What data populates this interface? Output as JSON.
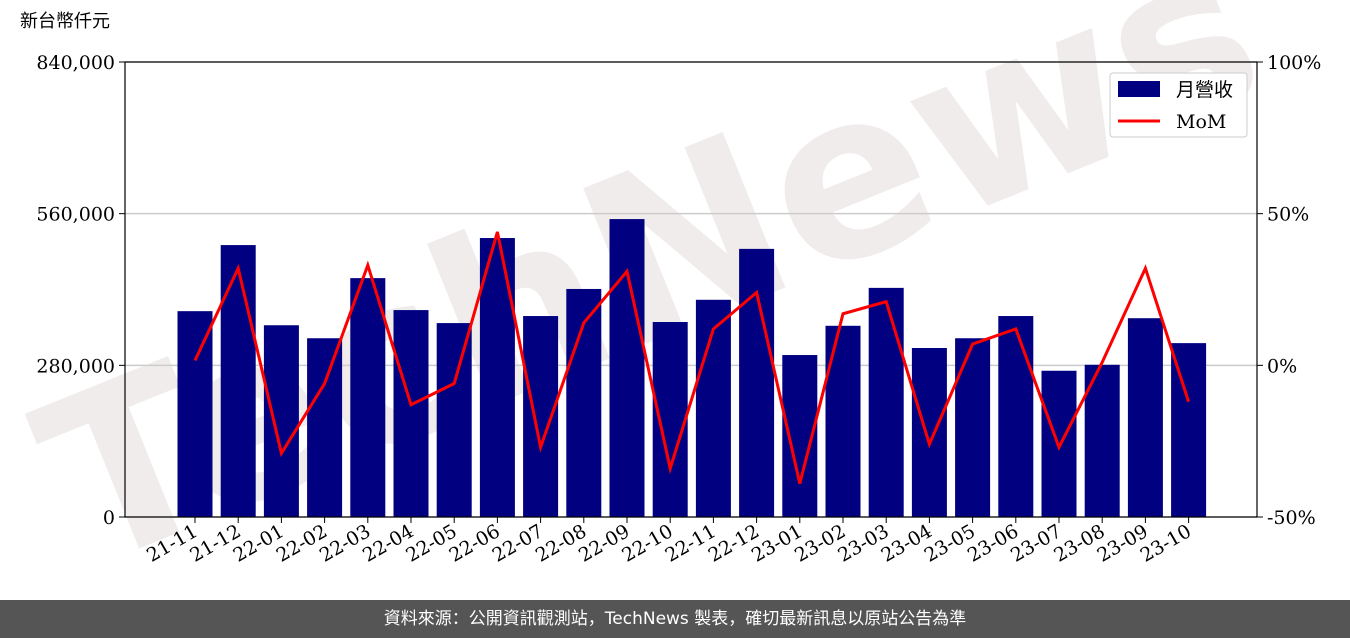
{
  "chart_data": {
    "type": "bar-line",
    "y_label": "新台幣仟元",
    "watermark": "TechNews",
    "categories": [
      "21-11",
      "21-12",
      "22-01",
      "22-02",
      "22-03",
      "22-04",
      "22-05",
      "22-06",
      "22-07",
      "22-08",
      "22-09",
      "22-10",
      "22-11",
      "22-12",
      "23-01",
      "23-02",
      "23-03",
      "23-04",
      "23-05",
      "23-06",
      "23-07",
      "23-08",
      "23-09",
      "23-10"
    ],
    "series": [
      {
        "name": "月營收",
        "type": "bar",
        "color": "#000080",
        "values": [
          380000,
          502000,
          354000,
          330000,
          441000,
          382000,
          358000,
          515000,
          371000,
          421000,
          550000,
          360000,
          401000,
          495000,
          299000,
          353000,
          423000,
          312000,
          330000,
          371000,
          270000,
          281000,
          367000,
          321000
        ]
      },
      {
        "name": "MoM",
        "type": "line",
        "axis": "y2",
        "color": "#ff0000",
        "values": [
          1.6,
          32,
          -29,
          -6,
          33,
          -13,
          -6,
          44,
          -27,
          14,
          31,
          -34,
          12,
          24,
          -39,
          17,
          21,
          -26,
          7,
          12,
          -27,
          1,
          32,
          -12
        ]
      }
    ],
    "ylim": [
      0,
      840000
    ],
    "yticks": [
      0,
      {
        "value": 280000,
        "label": "280,000"
      },
      {
        "value": 560000,
        "label": "560,000"
      },
      {
        "value": 840000,
        "label": "840,000"
      }
    ],
    "y2lim": [
      -50,
      100
    ],
    "y2ticks": [
      {
        "value": -50,
        "label": "-50%"
      },
      {
        "value": 0,
        "label": "0%"
      },
      {
        "value": 50,
        "label": "50%"
      },
      {
        "value": 100,
        "label": "100%"
      }
    ],
    "grid": true,
    "legend": "upper right",
    "footer": "資料來源：公開資訊觀測站，TechNews 製表，確切最新訊息以原站公告為準"
  }
}
